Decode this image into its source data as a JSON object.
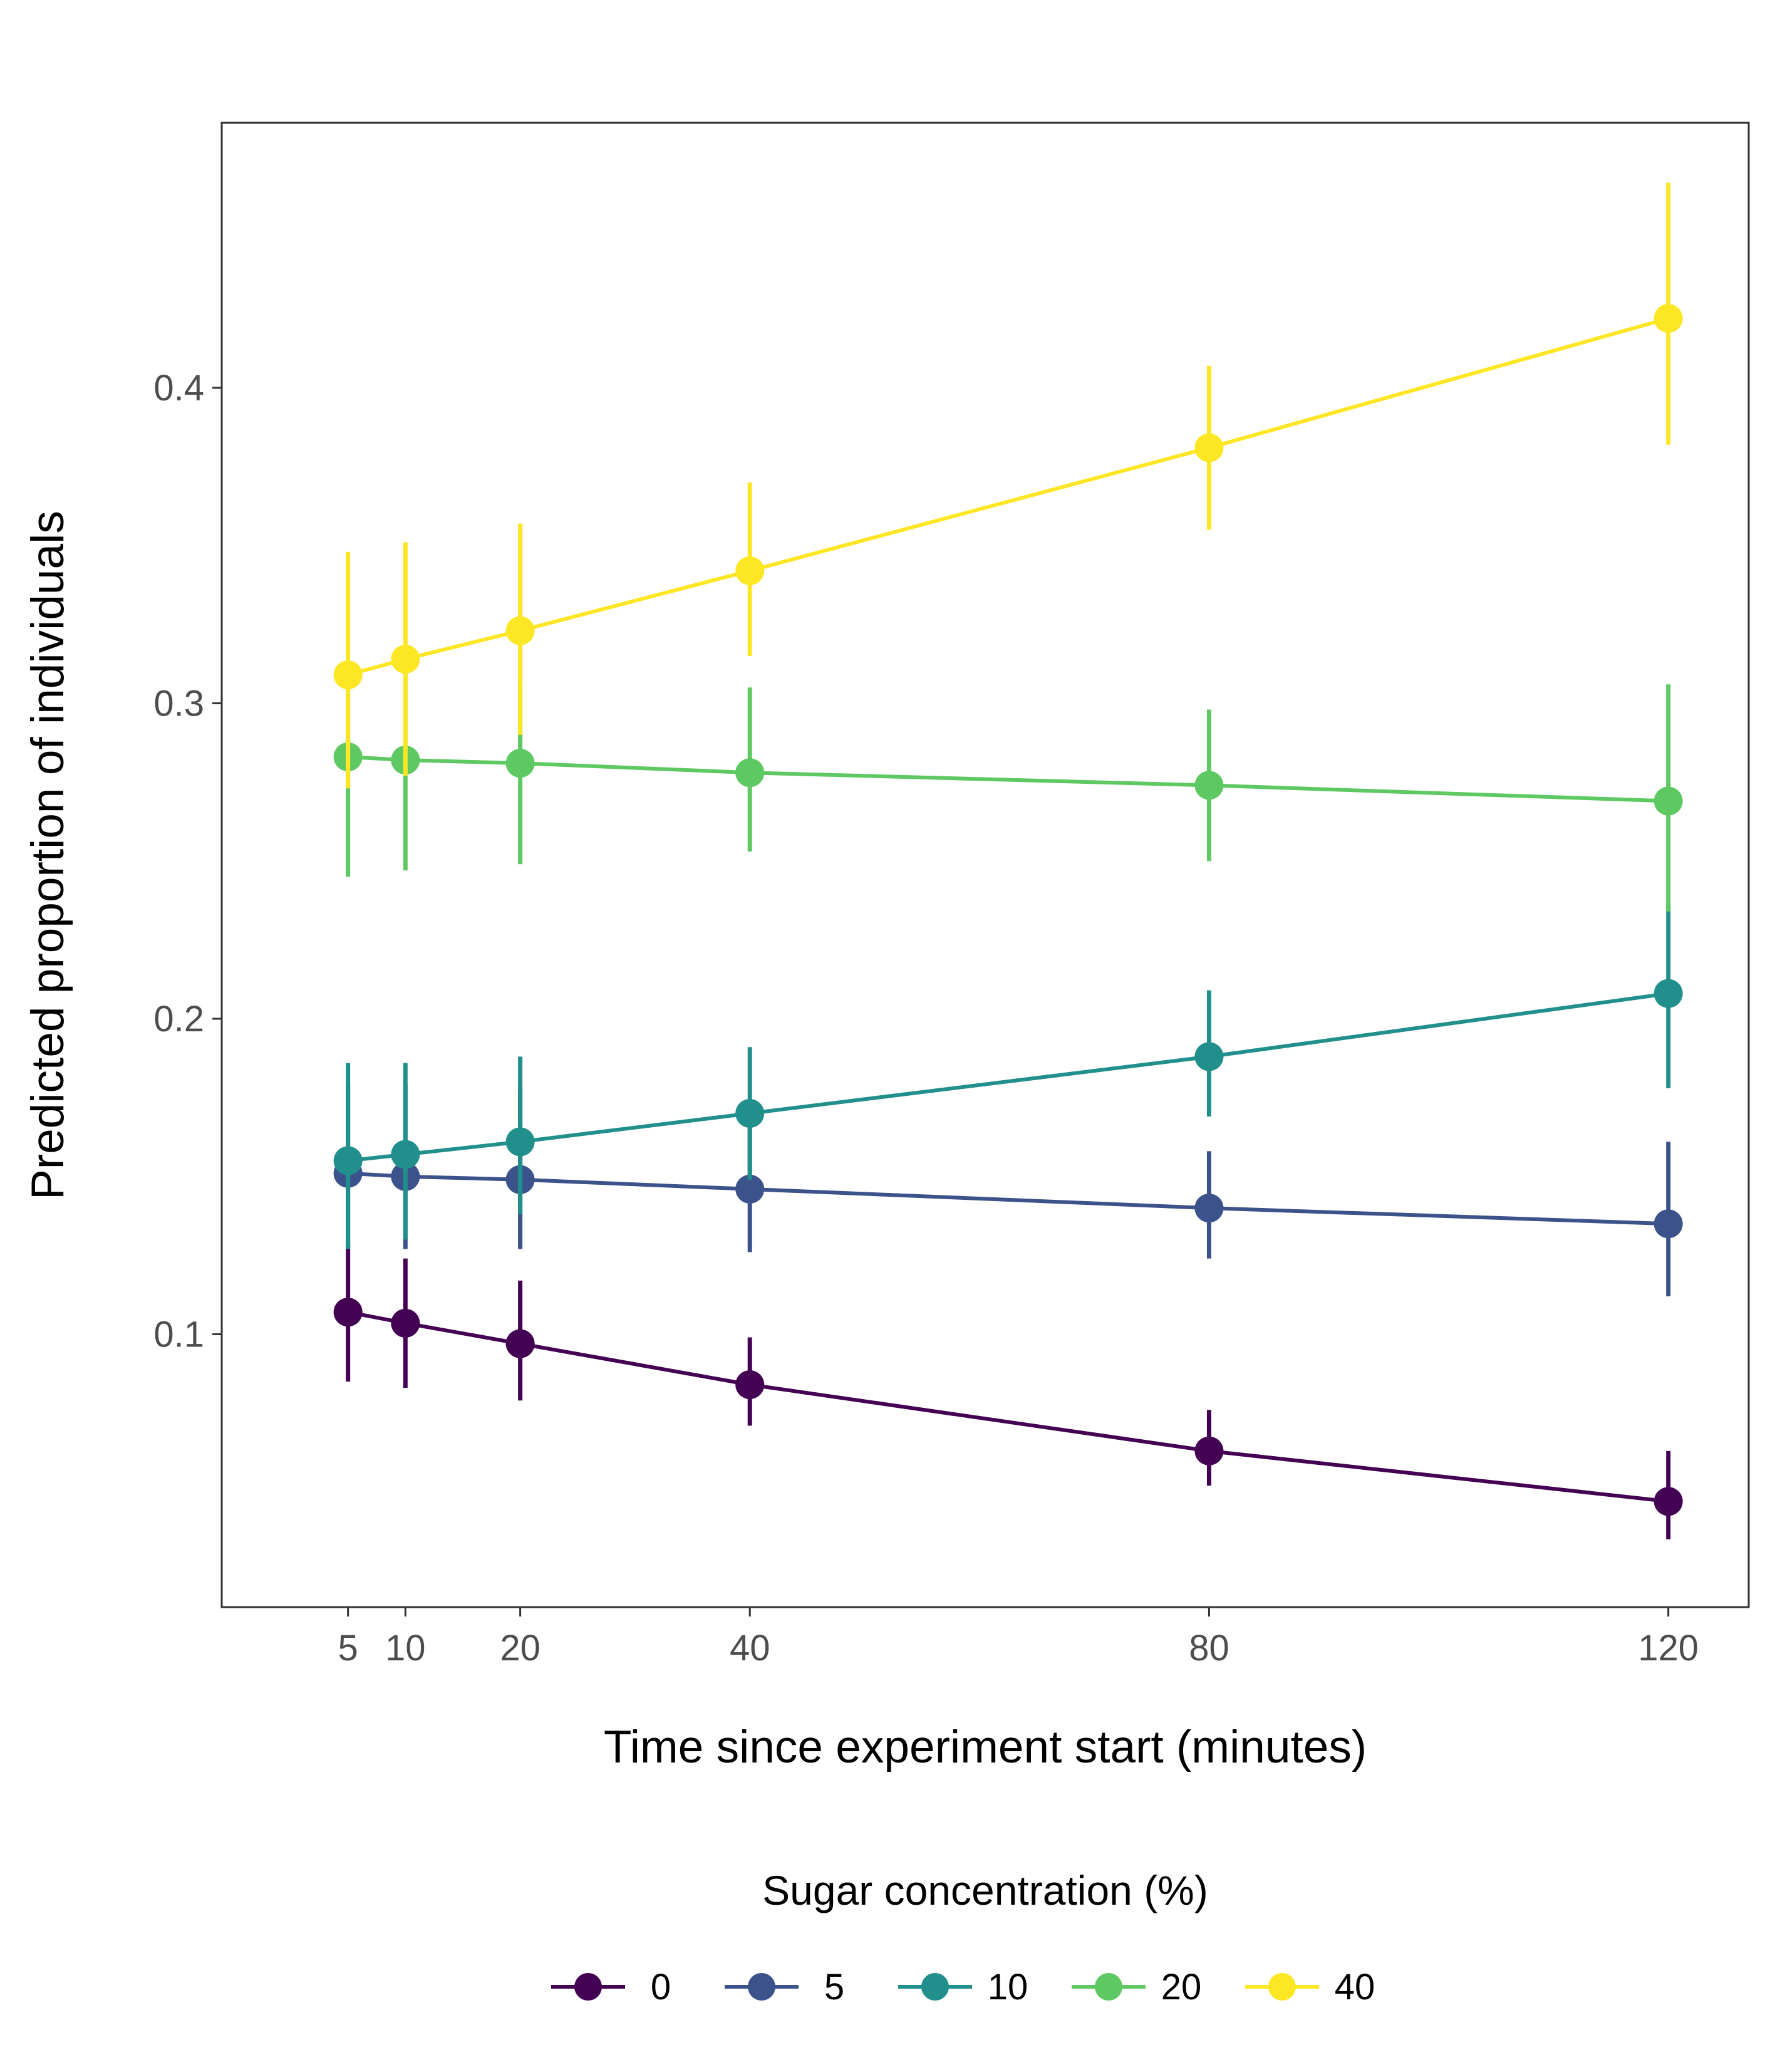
{
  "chart_data": {
    "type": "line",
    "title": "",
    "xlabel": "Time since experiment start (minutes)",
    "ylabel": "Predicted proportion of individuals",
    "x": [
      5,
      10,
      20,
      40,
      80,
      120
    ],
    "x_ticks": [
      5,
      10,
      20,
      40,
      80,
      120
    ],
    "y_ticks": [
      "0.1",
      "0.2",
      "0.3",
      "0.4"
    ],
    "y_tick_values": [
      0.1,
      0.2,
      0.3,
      0.4
    ],
    "xlim": [
      -6,
      127
    ],
    "ylim": [
      0.0135,
      0.484
    ],
    "grid": false,
    "legend": {
      "title": "Sugar concentration (%)",
      "position": "bottom"
    },
    "series": [
      {
        "name": "0",
        "color": "#440154",
        "values": [
          0.107,
          0.1035,
          0.097,
          0.084,
          0.063,
          0.047
        ],
        "lower": [
          0.085,
          0.083,
          0.079,
          0.071,
          0.052,
          0.035
        ],
        "upper": [
          0.128,
          0.124,
          0.117,
          0.099,
          0.076,
          0.063
        ]
      },
      {
        "name": "5",
        "color": "#3b528b",
        "values": [
          0.151,
          0.15,
          0.149,
          0.146,
          0.14,
          0.135
        ],
        "lower": [
          0.127,
          0.127,
          0.127,
          0.126,
          0.124,
          0.112
        ],
        "upper": [
          0.179,
          0.179,
          0.178,
          0.168,
          0.158,
          0.161
        ]
      },
      {
        "name": "10",
        "color": "#21908c",
        "values": [
          0.155,
          0.157,
          0.161,
          0.17,
          0.188,
          0.208
        ],
        "lower": [
          0.127,
          0.13,
          0.138,
          0.149,
          0.169,
          0.178
        ],
        "upper": [
          0.186,
          0.186,
          0.188,
          0.191,
          0.209,
          0.236
        ]
      },
      {
        "name": "20",
        "color": "#5ec962",
        "values": [
          0.283,
          0.282,
          0.281,
          0.278,
          0.274,
          0.269
        ],
        "lower": [
          0.245,
          0.247,
          0.249,
          0.253,
          0.25,
          0.234
        ],
        "upper": [
          0.311,
          0.31,
          0.307,
          0.305,
          0.298,
          0.306
        ]
      },
      {
        "name": "40",
        "color": "#fde725",
        "values": [
          0.309,
          0.314,
          0.323,
          0.342,
          0.381,
          0.422
        ],
        "lower": [
          0.273,
          0.277,
          0.29,
          0.315,
          0.355,
          0.382
        ],
        "upper": [
          0.348,
          0.351,
          0.357,
          0.37,
          0.407,
          0.465
        ]
      }
    ]
  }
}
